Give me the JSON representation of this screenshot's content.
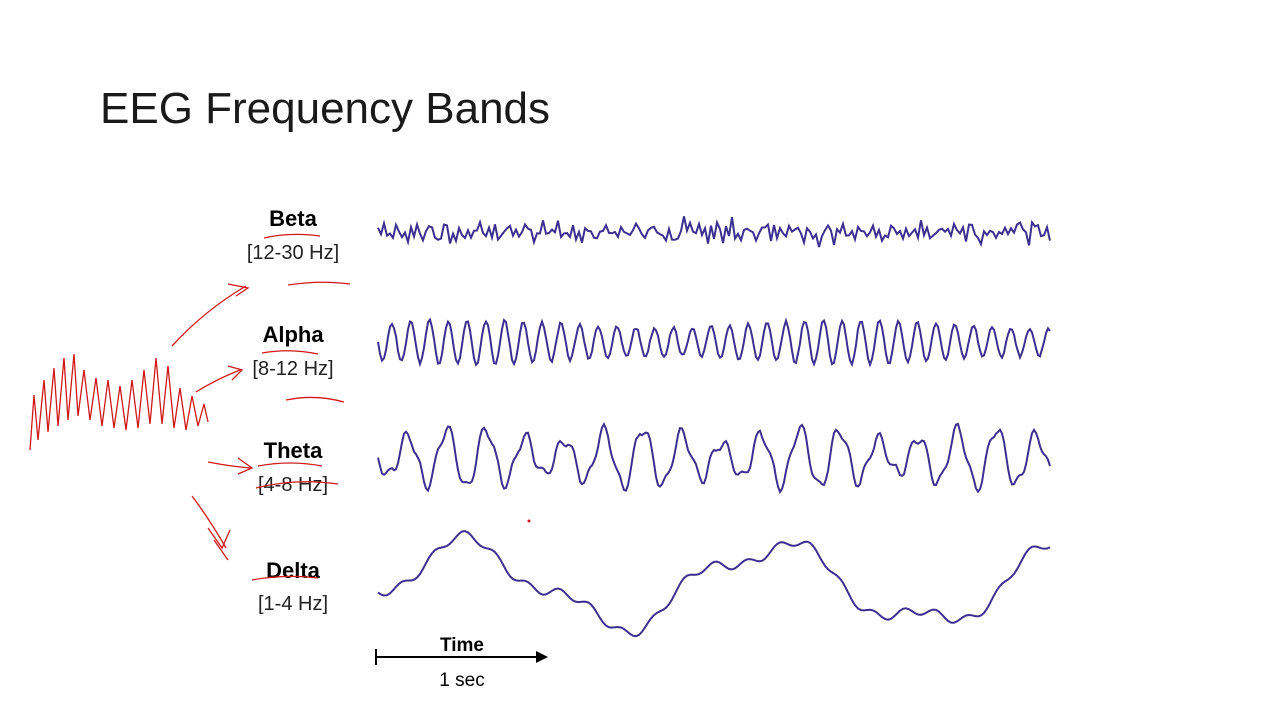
{
  "title": "EEG Frequency Bands",
  "bands": [
    {
      "name": "Beta",
      "range": "[12-30 Hz]"
    },
    {
      "name": "Alpha",
      "range": "[8-12 Hz]"
    },
    {
      "name": "Theta",
      "range": "[4-8 Hz]"
    },
    {
      "name": "Delta",
      "range": "[1-4 Hz]"
    }
  ],
  "time_axis": {
    "label": "Time",
    "duration": "1 sec"
  }
}
